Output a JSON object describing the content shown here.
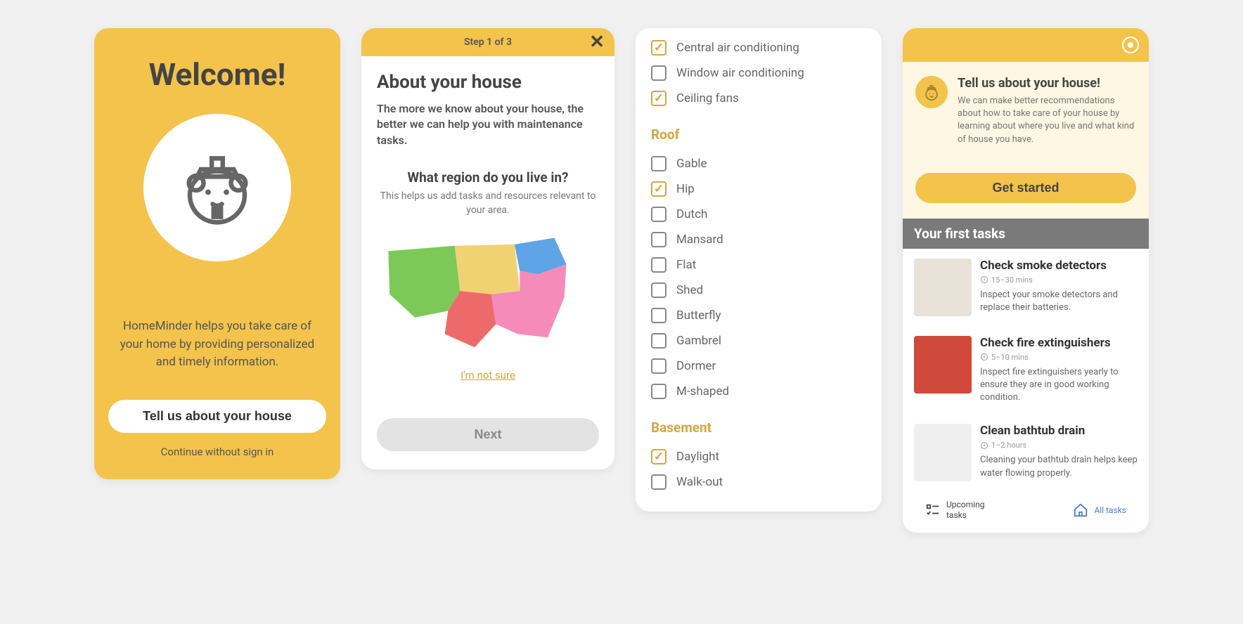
{
  "colors": {
    "accent_yellow": "#f3c34c",
    "accent_yellow_text": "#d4a642",
    "promo_bg": "#fdf7e3",
    "text_dark": "#444444",
    "text_mid": "#666666",
    "text_light": "#888888",
    "gray_bar": "#7a7a7a",
    "nav_blue": "#4a7bc8",
    "bg": "#f0f0f0"
  },
  "screen1": {
    "title": "Welcome!",
    "description": "HomeMinder helps you take care of your home by providing personalized and timely information.",
    "primary_button": "Tell us about your house",
    "secondary_link": "Continue without sign in"
  },
  "screen2": {
    "step_text": "Step 1 of 3",
    "heading": "About your house",
    "lead": "The more we know about your house, the better we can help you with maintenance tasks.",
    "question": "What region do you live in?",
    "question_sub": "This helps us add tasks and resources relevant to your area.",
    "not_sure": "I'm not sure",
    "next_button": "Next",
    "map_regions": {
      "west": "#7cc957",
      "central": "#f0d273",
      "south_central": "#ee6a6a",
      "southeast": "#f58bb9",
      "northeast": "#5ea4e6"
    }
  },
  "screen3": {
    "top_items": [
      {
        "label": "Central air conditioning",
        "checked": true
      },
      {
        "label": "Window air conditioning",
        "checked": false
      },
      {
        "label": "Ceiling fans",
        "checked": true
      }
    ],
    "sections": [
      {
        "title": "Roof",
        "items": [
          {
            "label": "Gable",
            "checked": false
          },
          {
            "label": "Hip",
            "checked": true
          },
          {
            "label": "Dutch",
            "checked": false
          },
          {
            "label": "Mansard",
            "checked": false
          },
          {
            "label": "Flat",
            "checked": false
          },
          {
            "label": "Shed",
            "checked": false
          },
          {
            "label": "Butterfly",
            "checked": false
          },
          {
            "label": "Gambrel",
            "checked": false
          },
          {
            "label": "Dormer",
            "checked": false
          },
          {
            "label": "M-shaped",
            "checked": false
          }
        ]
      },
      {
        "title": "Basement",
        "items": [
          {
            "label": "Daylight",
            "checked": true
          },
          {
            "label": "Walk-out",
            "checked": false
          }
        ]
      }
    ]
  },
  "screen4": {
    "promo_title": "Tell us about your house!",
    "promo_body": "We can make better recommendations about how to take care of your house by learning about where you live and what kind of house you have.",
    "promo_button": "Get started",
    "tasks_title": "Your first tasks",
    "tasks": [
      {
        "title": "Check smoke detectors",
        "duration": "15–30 mins",
        "desc": "Inspect your smoke detectors and replace their batteries.",
        "thumb_color": "#e8e2d9"
      },
      {
        "title": "Check fire extinguishers",
        "duration": "5–10 mins",
        "desc": "Inspect fire extinguishers yearly to ensure they are in good working condition.",
        "thumb_color": "#cf4a3a"
      },
      {
        "title": "Clean bathtub drain",
        "duration": "1–2 hours",
        "desc": "Cleaning your bathtub drain helps keep water flowing properly.",
        "thumb_color": "#efefef"
      }
    ],
    "nav": {
      "upcoming": "Upcoming tasks",
      "all": "All tasks"
    }
  }
}
